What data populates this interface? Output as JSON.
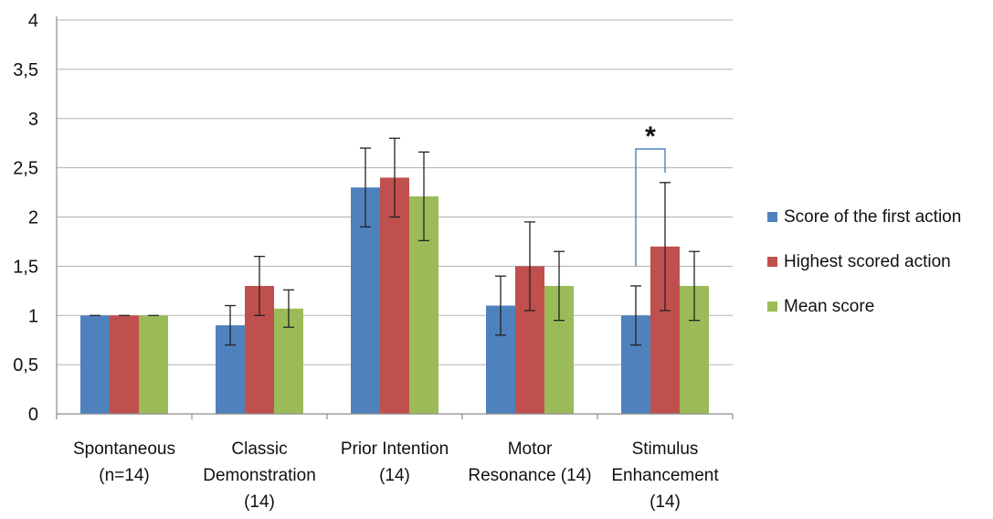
{
  "chart_data": {
    "type": "bar",
    "title": "",
    "xlabel": "",
    "ylabel": "",
    "ylim": [
      0,
      4
    ],
    "yticks": [
      "0",
      "0,5",
      "1",
      "1,5",
      "2",
      "2,5",
      "3",
      "3,5",
      "4"
    ],
    "grid": true,
    "legend_position": "right",
    "categories": [
      [
        "Spontaneous",
        "(n=14)"
      ],
      [
        "Classic",
        "Demonstration",
        "(14)"
      ],
      [
        "Prior Intention",
        "(14)"
      ],
      [
        "Motor",
        "Resonance (14)"
      ],
      [
        "Stimulus",
        "Enhancement",
        "(14)"
      ]
    ],
    "series": [
      {
        "name": "Score of the first action",
        "color": "#4f81bd",
        "values": [
          1.0,
          0.9,
          2.3,
          1.1,
          1.0
        ],
        "errors": [
          0,
          0.2,
          0.4,
          0.3,
          0.3
        ]
      },
      {
        "name": "Highest scored action",
        "color": "#c0504d",
        "values": [
          1.0,
          1.3,
          2.4,
          1.5,
          1.7
        ],
        "errors": [
          0,
          0.3,
          0.4,
          0.45,
          0.65
        ]
      },
      {
        "name": "Mean score",
        "color": "#9bbb59",
        "values": [
          1.0,
          1.07,
          2.21,
          1.3,
          1.3
        ],
        "errors": [
          0,
          0.19,
          0.45,
          0.35,
          0.35
        ]
      }
    ],
    "annotations": [
      {
        "text": "*",
        "category_index": 4,
        "series_from": 0,
        "series_to": 1,
        "color": "#4f81bd"
      }
    ]
  }
}
